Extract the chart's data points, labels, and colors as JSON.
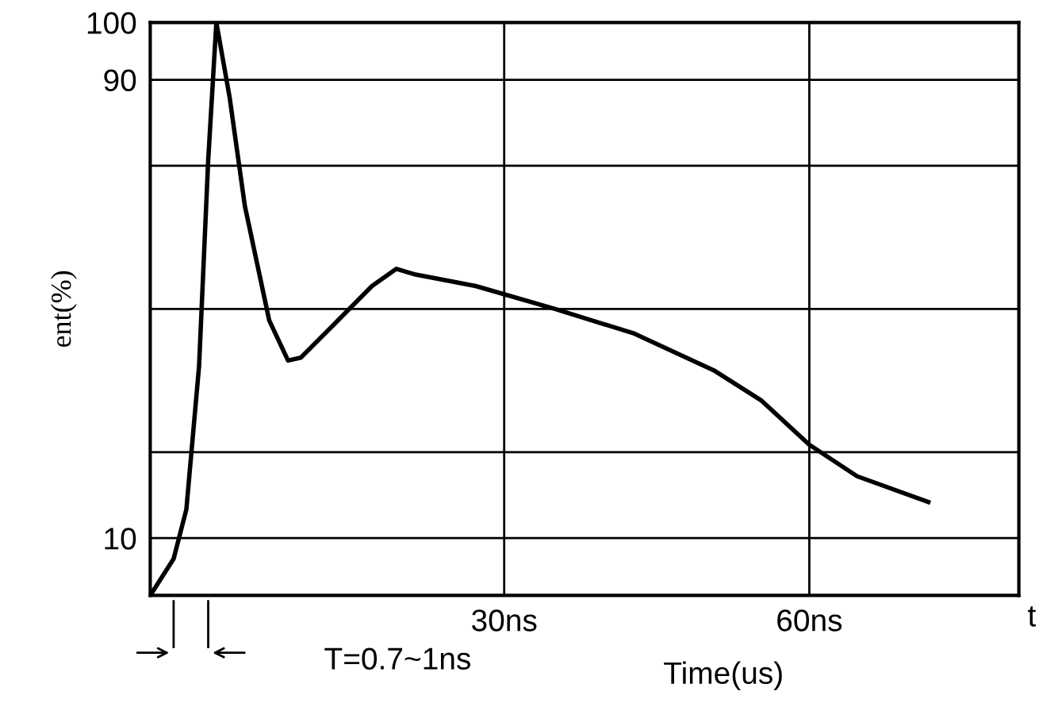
{
  "chart_data": {
    "type": "line",
    "ylabel": "ent(%)",
    "xlabel": "Time(us)",
    "annotations": [
      "T=0.7~1ns",
      "t"
    ],
    "x": [
      -4.8,
      -2.5,
      -1.25,
      0,
      0.9,
      1.7,
      3,
      4.5,
      6.9,
      8.75,
      10,
      13.1,
      17,
      19.4,
      21.3,
      27.2,
      35,
      42.8,
      50.6,
      55.3,
      60,
      64.7,
      71.7
    ],
    "series": [
      {
        "color": "#000000",
        "values": [
          0,
          6.4,
          15,
          40,
          76,
          100,
          87,
          68,
          48,
          41,
          41.5,
          47,
          54,
          57,
          56,
          54,
          50,
          45.7,
          39.3,
          34,
          26.3,
          20.8,
          16.3
        ]
      }
    ],
    "xlim": [
      -4.8,
      80.6
    ],
    "ylim": [
      0,
      100
    ],
    "xticks": [
      {
        "value": 30,
        "label": "30ns"
      },
      {
        "value": 60,
        "label": "60ns"
      }
    ],
    "yticks": [
      10,
      {
        "value": 25,
        "label": null
      },
      {
        "value": 50,
        "label": null
      },
      {
        "value": 75,
        "label": null
      },
      90,
      100
    ],
    "grid": true,
    "line_style": "solid",
    "marker": "none"
  }
}
